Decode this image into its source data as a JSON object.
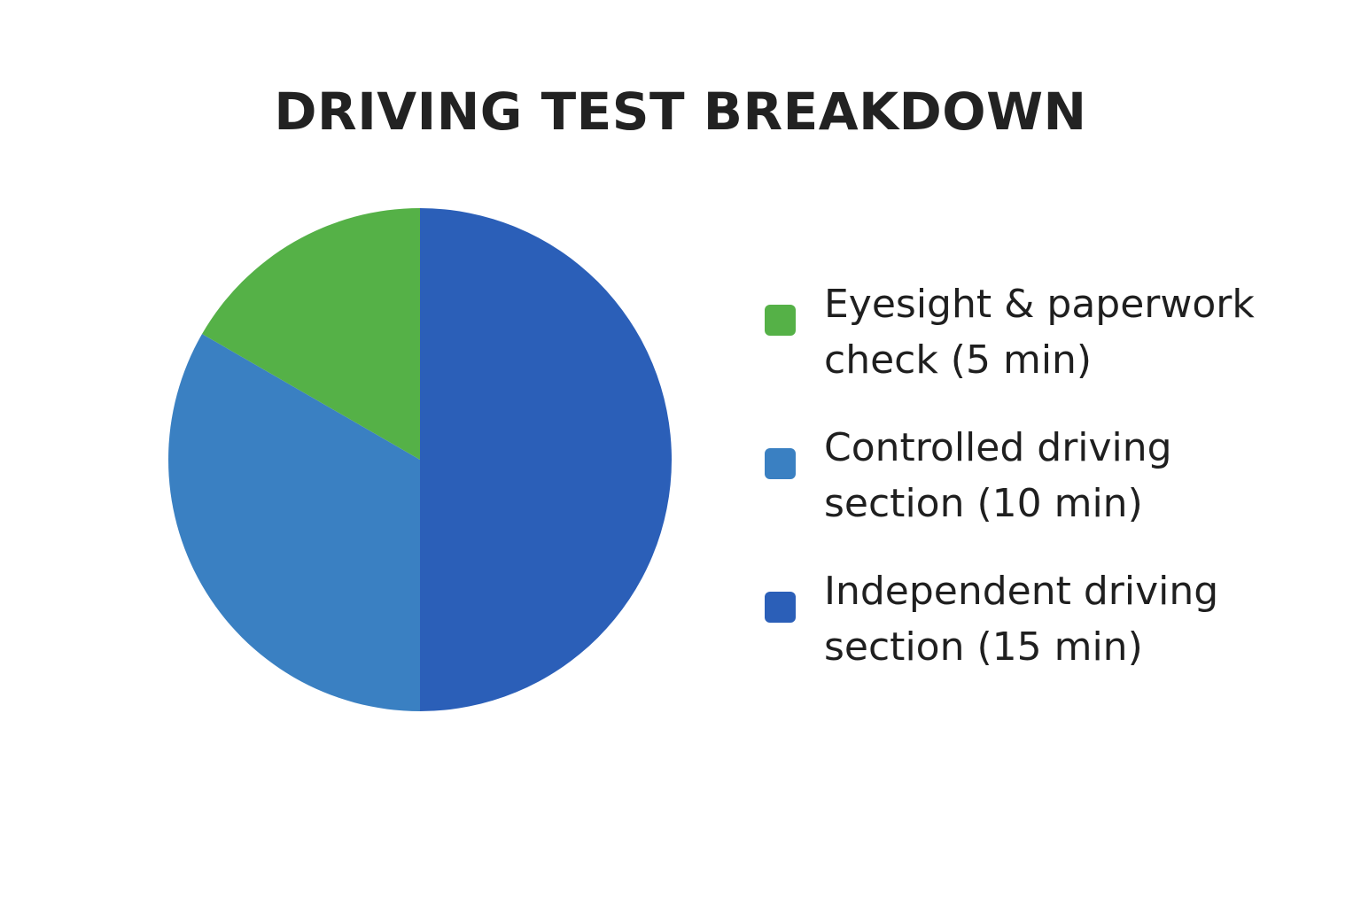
{
  "chart_data": {
    "type": "pie",
    "title": "DRIVING TEST BREAKDOWN",
    "legend_position": "right",
    "slices": [
      {
        "label": "Eyesight & paperwork check (5 min)",
        "value": 5,
        "color": "#55b147"
      },
      {
        "label": "Controlled driving section (10 min)",
        "value": 10,
        "color": "#3a80c2"
      },
      {
        "label": "Independent driving section (15 min)",
        "value": 15,
        "color": "#2b5fb8"
      }
    ]
  }
}
